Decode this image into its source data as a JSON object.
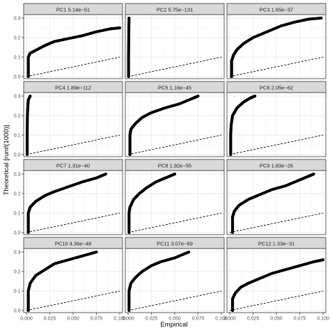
{
  "chart_data": {
    "type": "scatter",
    "layout": "facet-grid",
    "xlabel": "Empirical",
    "ylabel": "Theoretical [runif(1000)]",
    "xlim": [
      0,
      0.1
    ],
    "ylim": [
      0,
      0.3
    ],
    "x_ticks": [
      0,
      0.025,
      0.05,
      0.075,
      0.1
    ],
    "x_tick_labels": [
      "0.000",
      "0.025",
      "0.050",
      "0.075",
      "0.100"
    ],
    "y_ticks": [
      0,
      0.1,
      0.2,
      0.3
    ],
    "y_tick_labels": [
      "0.0",
      "0.1",
      "0.2",
      "0.3"
    ],
    "reference_line": {
      "slope": 1,
      "intercept": 0,
      "style": "dashed"
    },
    "grid": true,
    "panels": [
      {
        "label": "PC1 5.14e−51",
        "points": [
          [
            0.002,
            0.0
          ],
          [
            0.002,
            0.05
          ],
          [
            0.002,
            0.1
          ],
          [
            0.004,
            0.12
          ],
          [
            0.01,
            0.135
          ],
          [
            0.02,
            0.16
          ],
          [
            0.03,
            0.18
          ],
          [
            0.045,
            0.195
          ],
          [
            0.06,
            0.21
          ],
          [
            0.075,
            0.23
          ],
          [
            0.09,
            0.245
          ],
          [
            0.1,
            0.25
          ]
        ]
      },
      {
        "label": "PC2 5.75e−131",
        "points": [
          [
            0.0005,
            0.0
          ],
          [
            0.0005,
            0.05
          ],
          [
            0.0005,
            0.1
          ],
          [
            0.0006,
            0.15
          ],
          [
            0.0007,
            0.2
          ],
          [
            0.0008,
            0.25
          ],
          [
            0.001,
            0.3
          ]
        ]
      },
      {
        "label": "PC3 1.65e−37",
        "points": [
          [
            0.002,
            0.0
          ],
          [
            0.002,
            0.04
          ],
          [
            0.002,
            0.08
          ],
          [
            0.004,
            0.11
          ],
          [
            0.008,
            0.14
          ],
          [
            0.015,
            0.17
          ],
          [
            0.025,
            0.2
          ],
          [
            0.04,
            0.23
          ],
          [
            0.055,
            0.26
          ],
          [
            0.07,
            0.28
          ],
          [
            0.085,
            0.295
          ],
          [
            0.098,
            0.3
          ]
        ]
      },
      {
        "label": "PC4 1.89e−112",
        "points": [
          [
            0.0008,
            0.0
          ],
          [
            0.0008,
            0.05
          ],
          [
            0.0008,
            0.1
          ],
          [
            0.0009,
            0.15
          ],
          [
            0.001,
            0.2
          ],
          [
            0.0015,
            0.25
          ],
          [
            0.002,
            0.28
          ],
          [
            0.004,
            0.3
          ]
        ]
      },
      {
        "label": "PC5 1.16e−45",
        "points": [
          [
            0.002,
            0.0
          ],
          [
            0.002,
            0.05
          ],
          [
            0.002,
            0.1
          ],
          [
            0.003,
            0.13
          ],
          [
            0.008,
            0.16
          ],
          [
            0.015,
            0.19
          ],
          [
            0.025,
            0.215
          ],
          [
            0.04,
            0.24
          ],
          [
            0.055,
            0.26
          ],
          [
            0.07,
            0.29
          ],
          [
            0.075,
            0.3
          ]
        ]
      },
      {
        "label": "PC6 2.05e−62",
        "points": [
          [
            0.001,
            0.0
          ],
          [
            0.001,
            0.05
          ],
          [
            0.001,
            0.1
          ],
          [
            0.0015,
            0.15
          ],
          [
            0.003,
            0.2
          ],
          [
            0.008,
            0.24
          ],
          [
            0.015,
            0.27
          ],
          [
            0.022,
            0.29
          ],
          [
            0.027,
            0.3
          ]
        ]
      },
      {
        "label": "PC7 1.31e−40",
        "points": [
          [
            0.002,
            0.0
          ],
          [
            0.002,
            0.05
          ],
          [
            0.002,
            0.1
          ],
          [
            0.004,
            0.13
          ],
          [
            0.01,
            0.16
          ],
          [
            0.02,
            0.19
          ],
          [
            0.03,
            0.21
          ],
          [
            0.045,
            0.235
          ],
          [
            0.06,
            0.26
          ],
          [
            0.075,
            0.28
          ],
          [
            0.085,
            0.3
          ]
        ]
      },
      {
        "label": "PC8 1.92e−55",
        "points": [
          [
            0.001,
            0.0
          ],
          [
            0.001,
            0.05
          ],
          [
            0.001,
            0.1
          ],
          [
            0.002,
            0.13
          ],
          [
            0.006,
            0.17
          ],
          [
            0.012,
            0.2
          ],
          [
            0.02,
            0.23
          ],
          [
            0.03,
            0.26
          ],
          [
            0.04,
            0.28
          ],
          [
            0.05,
            0.3
          ]
        ]
      },
      {
        "label": "PC9 1.83e−26",
        "points": [
          [
            0.003,
            0.0
          ],
          [
            0.003,
            0.04
          ],
          [
            0.003,
            0.08
          ],
          [
            0.005,
            0.11
          ],
          [
            0.01,
            0.14
          ],
          [
            0.02,
            0.17
          ],
          [
            0.03,
            0.19
          ],
          [
            0.045,
            0.22
          ],
          [
            0.06,
            0.24
          ],
          [
            0.075,
            0.27
          ],
          [
            0.085,
            0.29
          ],
          [
            0.09,
            0.3
          ]
        ]
      },
      {
        "label": "PC10 4.36e−48",
        "points": [
          [
            0.002,
            0.0
          ],
          [
            0.002,
            0.05
          ],
          [
            0.002,
            0.1
          ],
          [
            0.004,
            0.14
          ],
          [
            0.01,
            0.18
          ],
          [
            0.02,
            0.21
          ],
          [
            0.03,
            0.24
          ],
          [
            0.045,
            0.26
          ],
          [
            0.06,
            0.28
          ],
          [
            0.075,
            0.3
          ]
        ]
      },
      {
        "label": "PC11 3.07e−69",
        "points": [
          [
            0.001,
            0.0
          ],
          [
            0.001,
            0.05
          ],
          [
            0.001,
            0.1
          ],
          [
            0.003,
            0.14
          ],
          [
            0.008,
            0.17
          ],
          [
            0.015,
            0.2
          ],
          [
            0.025,
            0.23
          ],
          [
            0.035,
            0.25
          ],
          [
            0.05,
            0.27
          ],
          [
            0.065,
            0.3
          ]
        ]
      },
      {
        "label": "PC12 1.33e−31",
        "points": [
          [
            0.003,
            0.0
          ],
          [
            0.003,
            0.03
          ],
          [
            0.003,
            0.06
          ],
          [
            0.006,
            0.09
          ],
          [
            0.012,
            0.12
          ],
          [
            0.02,
            0.14
          ],
          [
            0.03,
            0.16
          ],
          [
            0.045,
            0.19
          ],
          [
            0.06,
            0.21
          ],
          [
            0.075,
            0.23
          ],
          [
            0.09,
            0.25
          ],
          [
            0.1,
            0.26
          ]
        ]
      }
    ]
  },
  "colors": {
    "panel_bg": "#ffffff",
    "panel_border": "#333333",
    "strip_bg": "#d9d9d9",
    "grid_major": "#ebebeb",
    "grid_minor": "#f5f5f5",
    "points": "#000000",
    "reference_line": "#000000"
  }
}
